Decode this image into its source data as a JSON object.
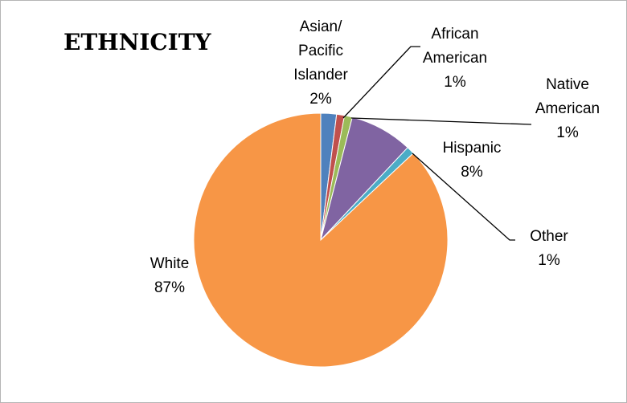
{
  "chart_data": {
    "type": "pie",
    "title": "ETHNICITY",
    "start_angle_deg": 0,
    "direction": "clockwise",
    "slices": [
      {
        "name": "Asian/ Pacific Islander",
        "label_lines": [
          "Asian/",
          "Pacific",
          "Islander"
        ],
        "value": 2,
        "value_text": "2%",
        "color": "#4F81BD"
      },
      {
        "name": "African American",
        "label_lines": [
          "African",
          "American"
        ],
        "value": 1,
        "value_text": "1%",
        "color": "#C0504D"
      },
      {
        "name": "Native American",
        "label_lines": [
          "Native",
          "American"
        ],
        "value": 1,
        "value_text": "1%",
        "color": "#9BBB59"
      },
      {
        "name": "Hispanic",
        "label_lines": [
          "Hispanic"
        ],
        "value": 8,
        "value_text": "8%",
        "color": "#8064A2"
      },
      {
        "name": "Other",
        "label_lines": [
          "Other"
        ],
        "value": 1,
        "value_text": "1%",
        "color": "#4BACC6"
      },
      {
        "name": "White",
        "label_lines": [
          "White"
        ],
        "value": 87,
        "value_text": "87%",
        "color": "#F79646"
      }
    ],
    "legend": "none",
    "leader_line_color": "#000000"
  }
}
